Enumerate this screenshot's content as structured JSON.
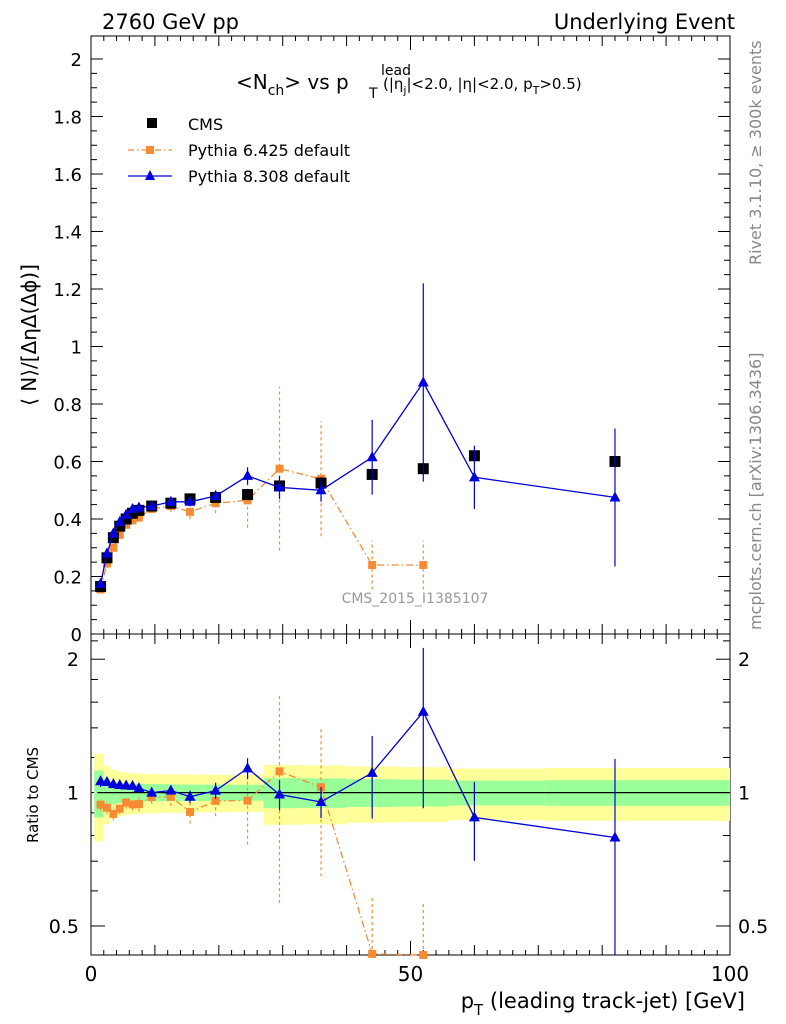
{
  "header": {
    "left": "2760 GeV pp",
    "right": "Underlying Event"
  },
  "side_labels": {
    "rivet": "Rivet 3.1.10, ≥ 300k events",
    "mcplots": "mcplots.cern.ch [arXiv:1306.3436]"
  },
  "chart_data": {
    "type": "scatter",
    "title": {
      "main": "<N",
      "sub1": "ch",
      "mid": "> vs p",
      "sup": "lead",
      "sub2": "T",
      "cut_open": " (|η",
      "cut_j": "j",
      "cut_mid": "|<2.0, |η|<2.0, p",
      "cut_T": "T",
      "cut_end": ">0.5)"
    },
    "watermark": "CMS_2015_I1385107",
    "ylabel": "⟨ N⟩/[ΔηΔ(Δϕ)]",
    "ratio_ylabel": "Ratio to CMS",
    "xlabel": {
      "p": "p",
      "T": "T",
      "rest": " (leading track-jet) [GeV]"
    },
    "xlim": [
      0,
      100
    ],
    "ylim": [
      0,
      2.08
    ],
    "ratio_ylim": [
      0.43,
      2.28
    ],
    "ratio_log": true,
    "xticks": [
      0,
      50,
      100
    ],
    "yticks": [
      "0",
      "0.2",
      "0.4",
      "0.6",
      "0.8",
      "1",
      "1.2",
      "1.4",
      "1.6",
      "1.8",
      "2"
    ],
    "ratio_yticks": [
      "0.5",
      "1",
      "2"
    ],
    "legend_position": "top-left",
    "colors": {
      "cms": "#000000",
      "pythia6": "#f68b33",
      "pythia8": "#0000dd",
      "band_inner": "#99ff99",
      "band_outer": "#ffff99"
    },
    "series": [
      {
        "name": "CMS",
        "style": "markers",
        "x": [
          1.5,
          2.5,
          3.5,
          4.5,
          5.5,
          6.5,
          7.5,
          9.5,
          12.5,
          15.5,
          19.5,
          24.5,
          29.5,
          36,
          44,
          52,
          60,
          82
        ],
        "y": [
          0.165,
          0.265,
          0.335,
          0.375,
          0.4,
          0.42,
          0.43,
          0.445,
          0.455,
          0.47,
          0.475,
          0.485,
          0.515,
          0.525,
          0.555,
          0.575,
          0.62,
          0.6
        ],
        "err": [
          0.01,
          0.01,
          0.01,
          0.01,
          0.01,
          0.01,
          0.01,
          0.01,
          0.01,
          0.01,
          0.01,
          0.01,
          0.02,
          0.02,
          0.02,
          0.02,
          0.02,
          0.02
        ]
      },
      {
        "name": "Pythia 6.425 default",
        "style": "dashdot-squares",
        "x": [
          1.5,
          2.5,
          3.5,
          4.5,
          5.5,
          6.5,
          7.5,
          9.5,
          12.5,
          15.5,
          19.5,
          24.5,
          29.5,
          36,
          44,
          52
        ],
        "y": [
          0.155,
          0.245,
          0.3,
          0.345,
          0.38,
          0.395,
          0.405,
          0.435,
          0.445,
          0.425,
          0.455,
          0.465,
          0.575,
          0.54,
          0.24,
          0.24
        ],
        "err": [
          0.005,
          0.008,
          0.01,
          0.01,
          0.012,
          0.012,
          0.015,
          0.015,
          0.02,
          0.025,
          0.035,
          0.095,
          0.285,
          0.2,
          0.085,
          0.085
        ]
      },
      {
        "name": "Pythia 8.308 default",
        "style": "solid-triangles",
        "x": [
          1.5,
          2.5,
          3.5,
          4.5,
          5.5,
          6.5,
          7.5,
          9.5,
          12.5,
          15.5,
          19.5,
          24.5,
          29.5,
          36,
          44,
          52,
          60,
          82
        ],
        "y": [
          0.175,
          0.28,
          0.35,
          0.39,
          0.415,
          0.435,
          0.44,
          0.445,
          0.46,
          0.46,
          0.48,
          0.55,
          0.51,
          0.5,
          0.615,
          0.875,
          0.545,
          0.475
        ],
        "err": [
          0.005,
          0.005,
          0.005,
          0.005,
          0.005,
          0.008,
          0.008,
          0.01,
          0.01,
          0.015,
          0.02,
          0.03,
          0.04,
          0.04,
          0.13,
          0.345,
          0.11,
          0.24
        ]
      }
    ]
  }
}
